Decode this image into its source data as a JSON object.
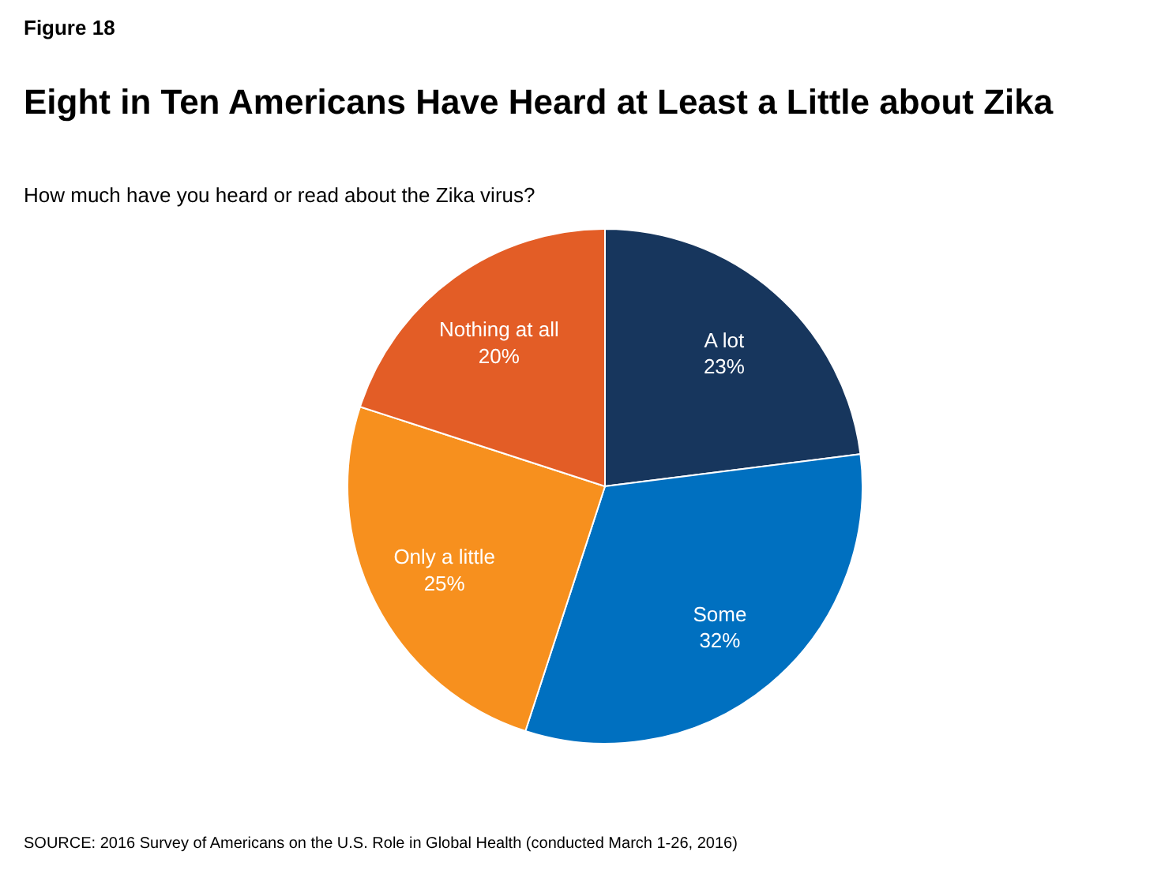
{
  "chart_data": {
    "type": "pie",
    "title": "Eight in Ten Americans Have Heard at Least a Little about Zika",
    "subtitle": "How much have you heard or read about the Zika virus?",
    "categories": [
      "A lot",
      "Some",
      "Only a little",
      "Nothing at all"
    ],
    "values": [
      23,
      32,
      25,
      20
    ],
    "colors": [
      "#17365d",
      "#0070c0",
      "#f7901e",
      "#e35d26"
    ],
    "value_labels": [
      "23%",
      "32%",
      "25%",
      "20%"
    ],
    "annotations": [
      "Figure 18",
      "SOURCE: 2016 Survey of Americans on the U.S. Role in Global Health (conducted March 1-26, 2016)"
    ]
  }
}
